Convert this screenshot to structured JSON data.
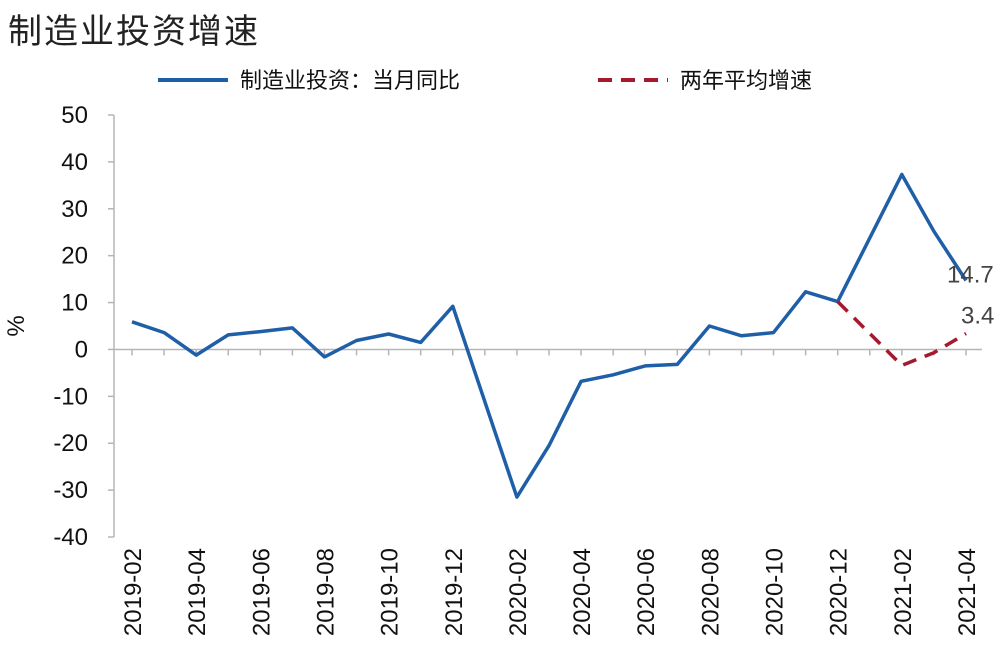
{
  "chart_data": {
    "type": "line",
    "title": "制造业投资增速",
    "ylabel": "%",
    "ylim": [
      -40,
      50
    ],
    "yticks": [
      50,
      40,
      30,
      20,
      10,
      0,
      -10,
      -20,
      -30,
      -40
    ],
    "x": [
      "2019-02",
      "2019-03",
      "2019-04",
      "2019-05",
      "2019-06",
      "2019-07",
      "2019-08",
      "2019-09",
      "2019-10",
      "2019-11",
      "2019-12",
      "2020-01",
      "2020-02",
      "2020-03",
      "2020-04",
      "2020-05",
      "2020-06",
      "2020-07",
      "2020-08",
      "2020-09",
      "2020-10",
      "2020-11",
      "2020-12",
      "2021-01",
      "2021-02",
      "2021-03",
      "2021-04"
    ],
    "xtick_labels": [
      "2019-02",
      "2019-04",
      "2019-06",
      "2019-08",
      "2019-10",
      "2019-12",
      "2020-02",
      "2020-04",
      "2020-06",
      "2020-08",
      "2020-10",
      "2020-12",
      "2021-02",
      "2021-04"
    ],
    "legend_position": "top",
    "series": [
      {
        "name": "制造业投资：当月同比",
        "color": "#1f5fa8",
        "style": "solid",
        "values": [
          5.9,
          3.6,
          -1.2,
          3.1,
          3.8,
          4.6,
          -1.6,
          1.9,
          3.3,
          1.5,
          9.2,
          null,
          -31.5,
          -20.5,
          -6.8,
          -5.4,
          -3.5,
          -3.2,
          5.0,
          2.9,
          3.6,
          12.3,
          10.2,
          null,
          37.3,
          25.2,
          14.7
        ]
      },
      {
        "name": "两年平均增速",
        "color": "#a3192d",
        "style": "dashed",
        "values": [
          null,
          null,
          null,
          null,
          null,
          null,
          null,
          null,
          null,
          null,
          null,
          null,
          null,
          null,
          null,
          null,
          null,
          null,
          null,
          null,
          null,
          null,
          10.2,
          null,
          -3.4,
          -0.7,
          3.4
        ]
      }
    ],
    "annotations": [
      {
        "series": 0,
        "index": 26,
        "text": "14.7"
      },
      {
        "series": 1,
        "index": 26,
        "text": "3.4"
      }
    ]
  }
}
